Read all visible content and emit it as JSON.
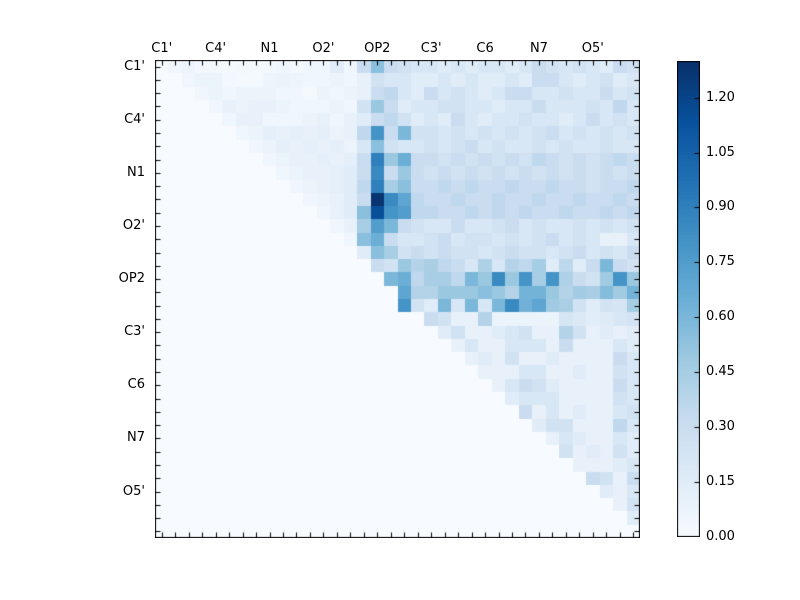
{
  "figure": {
    "background": "#ffffff",
    "axis_color": "#000000",
    "text_color": "#000000"
  },
  "chart_data": {
    "type": "heatmap",
    "title": "",
    "xlabel": "",
    "ylabel": "",
    "n": 36,
    "colormap": "Blues",
    "colormap_anchors": [
      "#f7fbff",
      "#deebf7",
      "#c6dbef",
      "#9ecae1",
      "#6baed6",
      "#4292c6",
      "#2171b5",
      "#08519c",
      "#08306b"
    ],
    "vmin": 0.0,
    "vmax": 1.3,
    "grid": false,
    "triangle": "upper",
    "group_labels": [
      "C1'",
      "C4'",
      "N1",
      "O2'",
      "OP2",
      "C3'",
      "C6",
      "N7",
      "O5'"
    ],
    "label_cell_positions": [
      0,
      4,
      8,
      12,
      16,
      20,
      24,
      28,
      32
    ],
    "colorbar": {
      "position": "right",
      "tick_labels": [
        "0.00",
        "0.15",
        "0.30",
        "0.45",
        "0.60",
        "0.75",
        "0.90",
        "1.05",
        "1.20"
      ],
      "tick_values": [
        0.0,
        0.15,
        0.3,
        0.45,
        0.6,
        0.75,
        0.9,
        1.05,
        1.2
      ]
    },
    "matrix": [
      [
        0,
        0.05,
        0.07,
        0.03,
        0.03,
        0.02,
        0.03,
        0.02,
        0.03,
        0.05,
        0.03,
        0.05,
        0.05,
        0.15,
        0.05,
        0.3,
        0.55,
        0.3,
        0.25,
        0.2,
        0.2,
        0.15,
        0.2,
        0.15,
        0.2,
        0.2,
        0.15,
        0.2,
        0.3,
        0.25,
        0.2,
        0.25,
        0.2,
        0.15,
        0.3,
        0.25
      ],
      [
        0,
        0,
        0.05,
        0.08,
        0.08,
        0.03,
        0.02,
        0.02,
        0.07,
        0.08,
        0.07,
        0.05,
        0.05,
        0.08,
        0.05,
        0.1,
        0.25,
        0.2,
        0.2,
        0.15,
        0.15,
        0.2,
        0.15,
        0.2,
        0.15,
        0.15,
        0.2,
        0.15,
        0.3,
        0.3,
        0.2,
        0.15,
        0.2,
        0.25,
        0.15,
        0.2
      ],
      [
        0,
        0,
        0,
        0.05,
        0.08,
        0.05,
        0.08,
        0.08,
        0.08,
        0.05,
        0.05,
        0.02,
        0.08,
        0.05,
        0.08,
        0.1,
        0.3,
        0.35,
        0.2,
        0.15,
        0.3,
        0.2,
        0.25,
        0.2,
        0.15,
        0.2,
        0.3,
        0.3,
        0.2,
        0.2,
        0.25,
        0.2,
        0.2,
        0.3,
        0.2,
        0.25
      ],
      [
        0,
        0,
        0,
        0,
        0.05,
        0.1,
        0.08,
        0.1,
        0.1,
        0.08,
        0.05,
        0.05,
        0.05,
        0.08,
        0.05,
        0.25,
        0.5,
        0.3,
        0.15,
        0.2,
        0.2,
        0.25,
        0.25,
        0.2,
        0.2,
        0.15,
        0.2,
        0.2,
        0.3,
        0.2,
        0.2,
        0.2,
        0.25,
        0.2,
        0.35,
        0.2
      ],
      [
        0,
        0,
        0,
        0,
        0,
        0.05,
        0.1,
        0.1,
        0.05,
        0.05,
        0.05,
        0.08,
        0.1,
        0.05,
        0.1,
        0.15,
        0.3,
        0.35,
        0.25,
        0.15,
        0.2,
        0.15,
        0.3,
        0.2,
        0.15,
        0.2,
        0.2,
        0.25,
        0.2,
        0.2,
        0.15,
        0.2,
        0.3,
        0.2,
        0.25,
        0.2
      ],
      [
        0,
        0,
        0,
        0,
        0,
        0,
        0.05,
        0.08,
        0.12,
        0.1,
        0.12,
        0.1,
        0.12,
        0.08,
        0.1,
        0.35,
        0.8,
        0.3,
        0.6,
        0.25,
        0.25,
        0.2,
        0.25,
        0.2,
        0.25,
        0.2,
        0.25,
        0.2,
        0.25,
        0.3,
        0.2,
        0.25,
        0.2,
        0.25,
        0.2,
        0.25
      ],
      [
        0,
        0,
        0,
        0,
        0,
        0,
        0,
        0.05,
        0.08,
        0.12,
        0.1,
        0.12,
        0.1,
        0.12,
        0.08,
        0.2,
        0.55,
        0.25,
        0.2,
        0.2,
        0.25,
        0.2,
        0.25,
        0.3,
        0.2,
        0.25,
        0.2,
        0.2,
        0.25,
        0.2,
        0.25,
        0.2,
        0.2,
        0.25,
        0.2,
        0.2
      ],
      [
        0,
        0,
        0,
        0,
        0,
        0,
        0,
        0,
        0.05,
        0.08,
        0.1,
        0.1,
        0.12,
        0.1,
        0.12,
        0.3,
        0.9,
        0.5,
        0.65,
        0.3,
        0.3,
        0.25,
        0.3,
        0.25,
        0.3,
        0.25,
        0.3,
        0.25,
        0.35,
        0.3,
        0.25,
        0.3,
        0.25,
        0.3,
        0.35,
        0.3
      ],
      [
        0,
        0,
        0,
        0,
        0,
        0,
        0,
        0,
        0,
        0.05,
        0.08,
        0.1,
        0.1,
        0.12,
        0.15,
        0.3,
        0.85,
        0.3,
        0.5,
        0.3,
        0.25,
        0.3,
        0.25,
        0.3,
        0.25,
        0.3,
        0.25,
        0.3,
        0.25,
        0.3,
        0.25,
        0.3,
        0.25,
        0.3,
        0.25,
        0.3
      ],
      [
        0,
        0,
        0,
        0,
        0,
        0,
        0,
        0,
        0,
        0,
        0.05,
        0.08,
        0.1,
        0.12,
        0.15,
        0.35,
        0.9,
        0.45,
        0.55,
        0.3,
        0.3,
        0.35,
        0.3,
        0.35,
        0.3,
        0.3,
        0.35,
        0.3,
        0.3,
        0.35,
        0.3,
        0.3,
        0.25,
        0.3,
        0.3,
        0.35
      ],
      [
        0,
        0,
        0,
        0,
        0,
        0,
        0,
        0,
        0,
        0,
        0,
        0.05,
        0.08,
        0.1,
        0.15,
        0.3,
        1.28,
        0.85,
        0.7,
        0.35,
        0.3,
        0.3,
        0.35,
        0.3,
        0.3,
        0.35,
        0.3,
        0.3,
        0.35,
        0.3,
        0.3,
        0.35,
        0.3,
        0.3,
        0.35,
        0.3
      ],
      [
        0,
        0,
        0,
        0,
        0,
        0,
        0,
        0,
        0,
        0,
        0,
        0,
        0.05,
        0.1,
        0.15,
        0.55,
        1.15,
        0.8,
        0.75,
        0.35,
        0.35,
        0.3,
        0.3,
        0.35,
        0.3,
        0.35,
        0.3,
        0.35,
        0.3,
        0.3,
        0.35,
        0.3,
        0.3,
        0.35,
        0.3,
        0.35
      ],
      [
        0,
        0,
        0,
        0,
        0,
        0,
        0,
        0,
        0,
        0,
        0,
        0,
        0,
        0.05,
        0.1,
        0.45,
        0.75,
        0.6,
        0.3,
        0.25,
        0.2,
        0.2,
        0.3,
        0.2,
        0.2,
        0.25,
        0.3,
        0.2,
        0.25,
        0.2,
        0.2,
        0.25,
        0.2,
        0.25,
        0.2,
        0.25
      ],
      [
        0,
        0,
        0,
        0,
        0,
        0,
        0,
        0,
        0,
        0,
        0,
        0,
        0,
        0,
        0.05,
        0.55,
        0.65,
        0.3,
        0.2,
        0.2,
        0.25,
        0.3,
        0.2,
        0.25,
        0.25,
        0.2,
        0.25,
        0.2,
        0.25,
        0.3,
        0.2,
        0.25,
        0.2,
        0.1,
        0.1,
        0.2
      ],
      [
        0,
        0,
        0,
        0,
        0,
        0,
        0,
        0,
        0,
        0,
        0,
        0,
        0,
        0,
        0,
        0.15,
        0.55,
        0.45,
        0.25,
        0.3,
        0.25,
        0.3,
        0.25,
        0.25,
        0.2,
        0.25,
        0.3,
        0.25,
        0.25,
        0.2,
        0.25,
        0.3,
        0.2,
        0.25,
        0.2,
        0.3
      ],
      [
        0,
        0,
        0,
        0,
        0,
        0,
        0,
        0,
        0,
        0,
        0,
        0,
        0,
        0,
        0,
        0,
        0.3,
        0.25,
        0.5,
        0.4,
        0.44,
        0.35,
        0.3,
        0.2,
        0.42,
        0.2,
        0.4,
        0.35,
        0.46,
        0.15,
        0.36,
        0.15,
        0.3,
        0.6,
        0.3,
        0.25
      ],
      [
        0,
        0,
        0,
        0,
        0,
        0,
        0,
        0,
        0,
        0,
        0,
        0,
        0,
        0,
        0,
        0,
        0,
        0.6,
        0.65,
        0.35,
        0.45,
        0.45,
        0.35,
        0.6,
        0.5,
        0.85,
        0.5,
        0.8,
        0.45,
        0.8,
        0.42,
        0.3,
        0.25,
        0.48,
        0.8,
        0.5
      ],
      [
        0,
        0,
        0,
        0,
        0,
        0,
        0,
        0,
        0,
        0,
        0,
        0,
        0,
        0,
        0,
        0,
        0,
        0,
        0.7,
        0.4,
        0.4,
        0.5,
        0.5,
        0.5,
        0.55,
        0.5,
        0.4,
        0.62,
        0.62,
        0.5,
        0.4,
        0.47,
        0.44,
        0.57,
        0.48,
        0.62
      ],
      [
        0,
        0,
        0,
        0,
        0,
        0,
        0,
        0,
        0,
        0,
        0,
        0,
        0,
        0,
        0,
        0,
        0,
        0,
        0.8,
        0.25,
        0.15,
        0.6,
        0.2,
        0.6,
        0.2,
        0.6,
        0.85,
        0.63,
        0.7,
        0.48,
        0.44,
        0.25,
        0.15,
        0.24,
        0.22,
        0.46
      ],
      [
        0,
        0,
        0,
        0,
        0,
        0,
        0,
        0,
        0,
        0,
        0,
        0,
        0,
        0,
        0,
        0,
        0,
        0,
        0,
        0,
        0.3,
        0.25,
        0.1,
        0.1,
        0.4,
        0.08,
        0.08,
        0.08,
        0.08,
        0.08,
        0.22,
        0.18,
        0.14,
        0.16,
        0.2,
        0.24
      ],
      [
        0,
        0,
        0,
        0,
        0,
        0,
        0,
        0,
        0,
        0,
        0,
        0,
        0,
        0,
        0,
        0,
        0,
        0,
        0,
        0,
        0,
        0.15,
        0.25,
        0.1,
        0.1,
        0.15,
        0.2,
        0.25,
        0.1,
        0.1,
        0.4,
        0.25,
        0.1,
        0.15,
        0.1,
        0.15
      ],
      [
        0,
        0,
        0,
        0,
        0,
        0,
        0,
        0,
        0,
        0,
        0,
        0,
        0,
        0,
        0,
        0,
        0,
        0,
        0,
        0,
        0,
        0,
        0.1,
        0.2,
        0.1,
        0.1,
        0.2,
        0.2,
        0.2,
        0.1,
        0.3,
        0.1,
        0.1,
        0.1,
        0.2,
        0.15
      ],
      [
        0,
        0,
        0,
        0,
        0,
        0,
        0,
        0,
        0,
        0,
        0,
        0,
        0,
        0,
        0,
        0,
        0,
        0,
        0,
        0,
        0,
        0,
        0,
        0.1,
        0.15,
        0.1,
        0.25,
        0.1,
        0.1,
        0.15,
        0.1,
        0.1,
        0.1,
        0.1,
        0.3,
        0.2
      ],
      [
        0,
        0,
        0,
        0,
        0,
        0,
        0,
        0,
        0,
        0,
        0,
        0,
        0,
        0,
        0,
        0,
        0,
        0,
        0,
        0,
        0,
        0,
        0,
        0,
        0.1,
        0.1,
        0.1,
        0.2,
        0.2,
        0.1,
        0.1,
        0.15,
        0.1,
        0.1,
        0.25,
        0.2
      ],
      [
        0,
        0,
        0,
        0,
        0,
        0,
        0,
        0,
        0,
        0,
        0,
        0,
        0,
        0,
        0,
        0,
        0,
        0,
        0,
        0,
        0,
        0,
        0,
        0,
        0,
        0.1,
        0.2,
        0.3,
        0.25,
        0.15,
        0.1,
        0.1,
        0.1,
        0.1,
        0.3,
        0.2
      ],
      [
        0,
        0,
        0,
        0,
        0,
        0,
        0,
        0,
        0,
        0,
        0,
        0,
        0,
        0,
        0,
        0,
        0,
        0,
        0,
        0,
        0,
        0,
        0,
        0,
        0,
        0,
        0.15,
        0.2,
        0.2,
        0.2,
        0.1,
        0.1,
        0.1,
        0.1,
        0.25,
        0.2
      ],
      [
        0,
        0,
        0,
        0,
        0,
        0,
        0,
        0,
        0,
        0,
        0,
        0,
        0,
        0,
        0,
        0,
        0,
        0,
        0,
        0,
        0,
        0,
        0,
        0,
        0,
        0,
        0,
        0.3,
        0.1,
        0.2,
        0.1,
        0.15,
        0.1,
        0.1,
        0.2,
        0.25
      ],
      [
        0,
        0,
        0,
        0,
        0,
        0,
        0,
        0,
        0,
        0,
        0,
        0,
        0,
        0,
        0,
        0,
        0,
        0,
        0,
        0,
        0,
        0,
        0,
        0,
        0,
        0,
        0,
        0,
        0.15,
        0.25,
        0.25,
        0.1,
        0.1,
        0.1,
        0.35,
        0.2
      ],
      [
        0,
        0,
        0,
        0,
        0,
        0,
        0,
        0,
        0,
        0,
        0,
        0,
        0,
        0,
        0,
        0,
        0,
        0,
        0,
        0,
        0,
        0,
        0,
        0,
        0,
        0,
        0,
        0,
        0,
        0.1,
        0.2,
        0.15,
        0.1,
        0.1,
        0.2,
        0.15
      ],
      [
        0,
        0,
        0,
        0,
        0,
        0,
        0,
        0,
        0,
        0,
        0,
        0,
        0,
        0,
        0,
        0,
        0,
        0,
        0,
        0,
        0,
        0,
        0,
        0,
        0,
        0,
        0,
        0,
        0,
        0,
        0.25,
        0.1,
        0.15,
        0.1,
        0.25,
        0.15
      ],
      [
        0,
        0,
        0,
        0,
        0,
        0,
        0,
        0,
        0,
        0,
        0,
        0,
        0,
        0,
        0,
        0,
        0,
        0,
        0,
        0,
        0,
        0,
        0,
        0,
        0,
        0,
        0,
        0,
        0,
        0,
        0,
        0.1,
        0.1,
        0.1,
        0.15,
        0.2
      ],
      [
        0,
        0,
        0,
        0,
        0,
        0,
        0,
        0,
        0,
        0,
        0,
        0,
        0,
        0,
        0,
        0,
        0,
        0,
        0,
        0,
        0,
        0,
        0,
        0,
        0,
        0,
        0,
        0,
        0,
        0,
        0,
        0,
        0.3,
        0.25,
        0.1,
        0.3
      ],
      [
        0,
        0,
        0,
        0,
        0,
        0,
        0,
        0,
        0,
        0,
        0,
        0,
        0,
        0,
        0,
        0,
        0,
        0,
        0,
        0,
        0,
        0,
        0,
        0,
        0,
        0,
        0,
        0,
        0,
        0,
        0,
        0,
        0,
        0.15,
        0.1,
        0.2
      ],
      [
        0,
        0,
        0,
        0,
        0,
        0,
        0,
        0,
        0,
        0,
        0,
        0,
        0,
        0,
        0,
        0,
        0,
        0,
        0,
        0,
        0,
        0,
        0,
        0,
        0,
        0,
        0,
        0,
        0,
        0,
        0,
        0,
        0,
        0,
        0.1,
        0.25
      ],
      [
        0,
        0,
        0,
        0,
        0,
        0,
        0,
        0,
        0,
        0,
        0,
        0,
        0,
        0,
        0,
        0,
        0,
        0,
        0,
        0,
        0,
        0,
        0,
        0,
        0,
        0,
        0,
        0,
        0,
        0,
        0,
        0,
        0,
        0,
        0,
        0.15
      ],
      [
        0,
        0,
        0,
        0,
        0,
        0,
        0,
        0,
        0,
        0,
        0,
        0,
        0,
        0,
        0,
        0,
        0,
        0,
        0,
        0,
        0,
        0,
        0,
        0,
        0,
        0,
        0,
        0,
        0,
        0,
        0,
        0,
        0,
        0,
        0,
        0
      ]
    ]
  }
}
